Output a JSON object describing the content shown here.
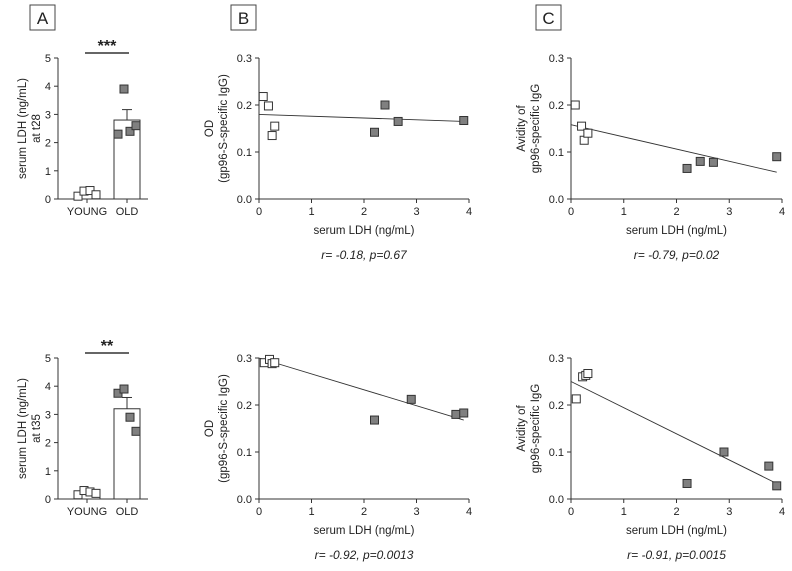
{
  "colors": {
    "young": "#ffffff",
    "old": "#808080",
    "stroke": "#333333",
    "text": "#222222"
  },
  "chart_data": [
    {
      "id": "r1a",
      "panel": "A",
      "type": "bar",
      "ylabel": [
        "serum LDH (ng/mL)",
        "at t28"
      ],
      "categories": [
        "YOUNG",
        "OLD"
      ],
      "values": [
        0.2,
        2.8
      ],
      "errors": [
        0.07,
        0.37
      ],
      "points": [
        [
          0.1,
          0.28,
          0.3,
          0.15
        ],
        [
          2.3,
          3.9,
          2.4,
          2.6
        ]
      ],
      "ylim": [
        0,
        5
      ],
      "yticks": [
        0,
        1,
        2,
        3,
        4,
        5
      ],
      "significance": "***"
    },
    {
      "id": "r1b",
      "panel": "B",
      "type": "scatter",
      "xlabel": "serum LDH (ng/mL)",
      "ylabel": [
        "OD",
        "(gp96-S-specific IgG)"
      ],
      "xlim": [
        0,
        4
      ],
      "ylim": [
        0,
        0.3
      ],
      "xticks": [
        0,
        1,
        2,
        3,
        4
      ],
      "yticks": [
        0.0,
        0.1,
        0.2,
        0.3
      ],
      "series": [
        {
          "name": "YOUNG",
          "x": [
            0.08,
            0.18,
            0.25,
            0.3
          ],
          "y": [
            0.218,
            0.198,
            0.135,
            0.155
          ]
        },
        {
          "name": "OLD",
          "x": [
            2.2,
            2.4,
            2.65,
            3.9
          ],
          "y": [
            0.142,
            0.2,
            0.165,
            0.167
          ]
        }
      ],
      "fit": {
        "x": [
          0.0,
          3.9
        ],
        "y": [
          0.18,
          0.165
        ]
      },
      "stat": "r= -0.18, p=0.67"
    },
    {
      "id": "r1c",
      "panel": "C",
      "type": "scatter",
      "xlabel": "serum LDH (ng/mL)",
      "ylabel": [
        "Avidity of",
        "gp96-specific IgG"
      ],
      "xlim": [
        0,
        4
      ],
      "ylim": [
        0,
        0.3
      ],
      "xticks": [
        0,
        1,
        2,
        3,
        4
      ],
      "yticks": [
        0.0,
        0.1,
        0.2,
        0.3
      ],
      "series": [
        {
          "name": "YOUNG",
          "x": [
            0.08,
            0.2,
            0.25,
            0.32
          ],
          "y": [
            0.2,
            0.155,
            0.125,
            0.14
          ]
        },
        {
          "name": "OLD",
          "x": [
            2.2,
            2.45,
            2.7,
            3.9
          ],
          "y": [
            0.065,
            0.08,
            0.078,
            0.09
          ]
        }
      ],
      "fit": {
        "x": [
          0.0,
          3.9
        ],
        "y": [
          0.158,
          0.057
        ]
      },
      "stat": "r= -0.79, p=0.02"
    },
    {
      "id": "r2a",
      "type": "bar",
      "ylabel": [
        "serum LDH (ng/mL)",
        "at t35"
      ],
      "categories": [
        "YOUNG",
        "OLD"
      ],
      "values": [
        0.22,
        3.2
      ],
      "errors": [
        0.05,
        0.4
      ],
      "points": [
        [
          0.15,
          0.3,
          0.25,
          0.2
        ],
        [
          3.75,
          3.9,
          2.9,
          2.4
        ]
      ],
      "ylim": [
        0,
        5
      ],
      "yticks": [
        0,
        1,
        2,
        3,
        4,
        5
      ],
      "significance": "**"
    },
    {
      "id": "r2b",
      "type": "scatter",
      "xlabel": "serum LDH (ng/mL)",
      "ylabel": [
        "OD",
        "(gp96-S-specific IgG)"
      ],
      "xlim": [
        0,
        4
      ],
      "ylim": [
        0,
        0.3
      ],
      "xticks": [
        0,
        1,
        2,
        3,
        4
      ],
      "yticks": [
        0.0,
        0.1,
        0.2,
        0.3
      ],
      "series": [
        {
          "name": "YOUNG",
          "x": [
            0.1,
            0.2,
            0.25,
            0.3
          ],
          "y": [
            0.29,
            0.297,
            0.288,
            0.29
          ]
        },
        {
          "name": "OLD",
          "x": [
            2.2,
            2.9,
            3.75,
            3.9
          ],
          "y": [
            0.168,
            0.212,
            0.18,
            0.183
          ]
        }
      ],
      "fit": {
        "x": [
          0.0,
          3.9
        ],
        "y": [
          0.3,
          0.168
        ]
      },
      "stat": "r= -0.92, p=0.0013"
    },
    {
      "id": "r2c",
      "type": "scatter",
      "xlabel": "serum LDH (ng/mL)",
      "ylabel": [
        "Avidity of",
        "gp96-specific IgG"
      ],
      "xlim": [
        0,
        4
      ],
      "ylim": [
        0,
        0.3
      ],
      "xticks": [
        0,
        1,
        2,
        3,
        4
      ],
      "yticks": [
        0.0,
        0.1,
        0.2,
        0.3
      ],
      "series": [
        {
          "name": "YOUNG",
          "x": [
            0.1,
            0.22,
            0.28,
            0.32
          ],
          "y": [
            0.213,
            0.26,
            0.263,
            0.267
          ]
        },
        {
          "name": "OLD",
          "x": [
            2.2,
            2.9,
            3.75,
            3.9
          ],
          "y": [
            0.033,
            0.1,
            0.07,
            0.028
          ]
        }
      ],
      "fit": {
        "x": [
          0.0,
          3.9
        ],
        "y": [
          0.25,
          0.033
        ]
      },
      "stat": "r= -0.91, p=0.0015"
    }
  ]
}
